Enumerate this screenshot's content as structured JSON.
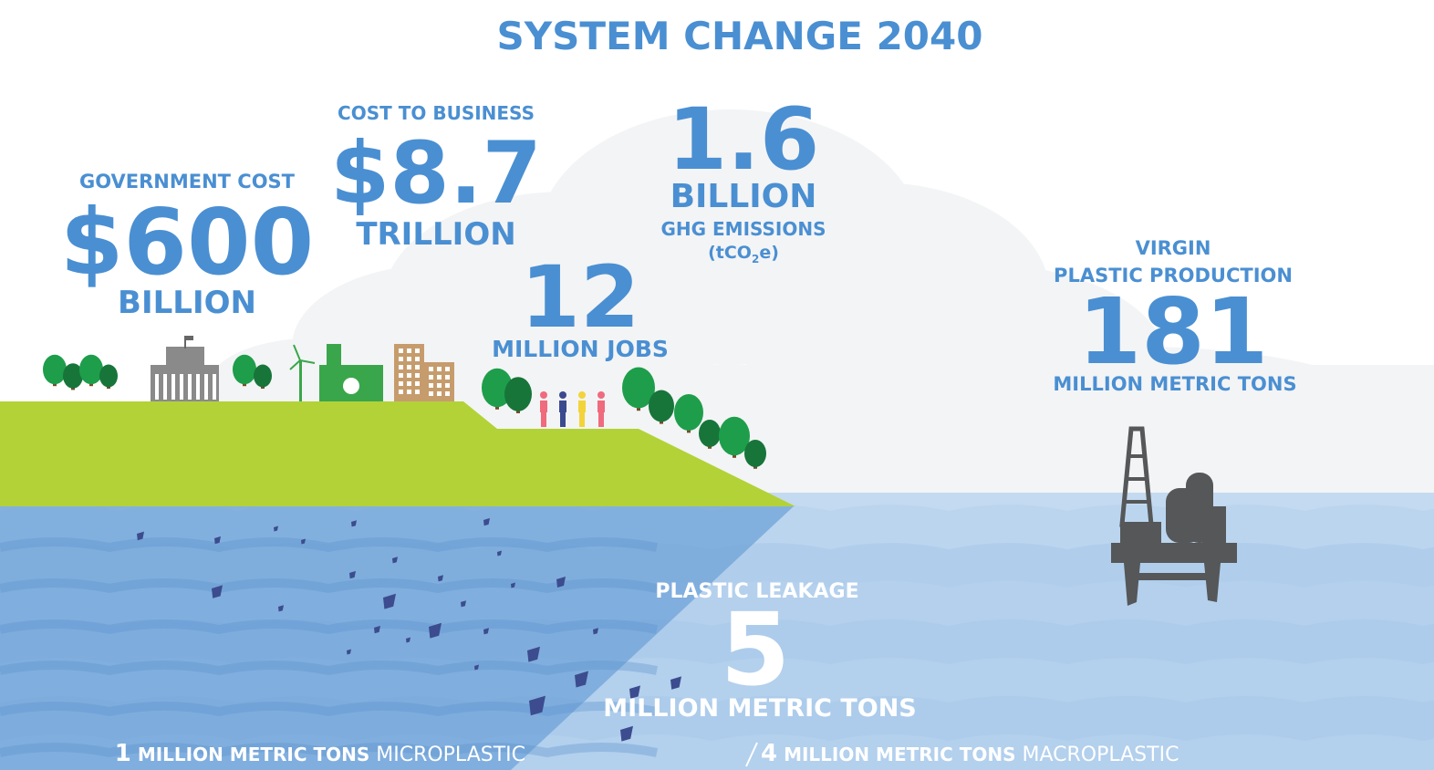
{
  "title": "SYSTEM CHANGE 2040",
  "government": {
    "label": "GOVERNMENT COST",
    "value": "$600",
    "unit": "BILLION"
  },
  "business": {
    "label": "COST TO BUSINESS",
    "value": "$8.7",
    "unit": "TRILLION"
  },
  "emissions": {
    "value": "1.6",
    "unit": "BILLION",
    "label": "GHG EMISSIONS",
    "unit_parts": [
      "(tCO",
      "2",
      "e)"
    ]
  },
  "jobs": {
    "value": "12",
    "label": "MILLION JOBS"
  },
  "virgin": {
    "label_lines": [
      "VIRGIN",
      "PLASTIC PRODUCTION"
    ],
    "value": "181",
    "unit": "MILLION METRIC TONS"
  },
  "leakage": {
    "label": "PLASTIC LEAKAGE",
    "value": "5",
    "unit": "MILLION METRIC TONS",
    "breakdown": [
      {
        "value": "1",
        "unit": "MILLION METRIC TONS",
        "kind": "MICROPLASTIC"
      },
      {
        "value": "4",
        "unit": "MILLION METRIC TONS",
        "kind": "MACROPLASTIC"
      }
    ]
  }
}
